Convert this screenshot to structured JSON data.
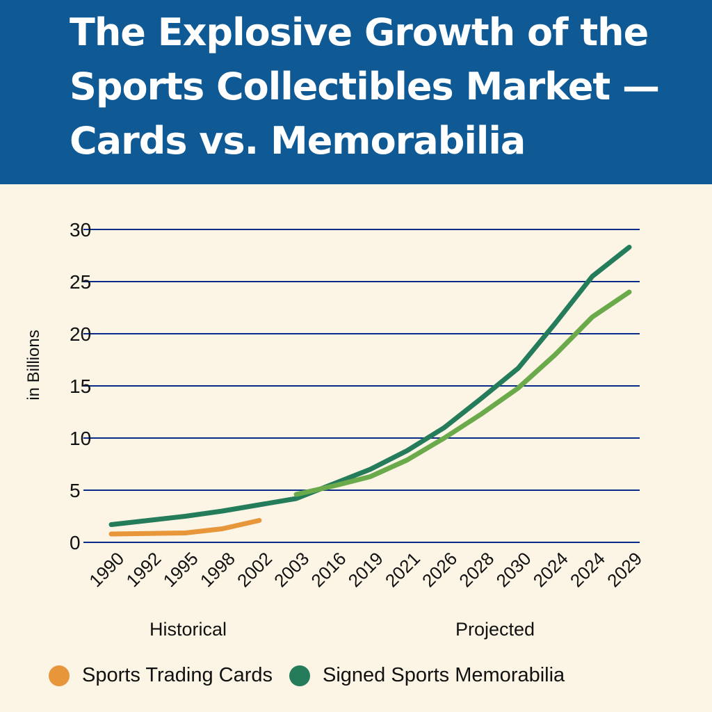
{
  "title": "The Explosive Growth of the Sports Collectibles Market — Cards vs. Memorabilia",
  "colors": {
    "header": "#0f5a95",
    "background": "#fcf5e6",
    "grid": "#0a2a8a",
    "cards": "#e8963a",
    "memorabilia": "#247c5a",
    "projected": "#6aaa4a"
  },
  "chart_data": {
    "type": "line",
    "title": "The Explosive Growth of the Sports Collectibles Market — Cards vs. Memorabilia",
    "ylabel": "in Billions",
    "xlabel": "",
    "ylim": [
      0,
      30
    ],
    "yticks": [
      0,
      5,
      10,
      15,
      20,
      25,
      30
    ],
    "grid": true,
    "legend_placement": "bottom",
    "categories": [
      "1990",
      "1992",
      "1995",
      "1998",
      "2002",
      "2003",
      "2016",
      "2019",
      "2021",
      "2026",
      "2028",
      "2030",
      "2024",
      "2024",
      "2029"
    ],
    "annotations": [
      "Historical",
      "Projected"
    ],
    "series": [
      {
        "name": "Sports Trading Cards",
        "color": "#e8963a",
        "values": [
          0.8,
          0.85,
          0.9,
          1.3,
          2.1,
          null,
          null,
          null,
          null,
          null,
          null,
          null,
          null,
          null,
          null
        ]
      },
      {
        "name": "Signed Sports Memorabilia",
        "color": "#247c5a",
        "values": [
          1.7,
          2.1,
          2.5,
          3.0,
          3.6,
          4.2,
          5.6,
          7.0,
          8.8,
          11.0,
          13.8,
          16.7,
          21.0,
          25.5,
          28.3
        ]
      },
      {
        "color": "#6aaa4a",
        "values": [
          null,
          null,
          null,
          null,
          null,
          4.6,
          5.4,
          6.3,
          7.9,
          10.0,
          12.3,
          14.8,
          18.0,
          21.6,
          24.0
        ]
      }
    ]
  }
}
